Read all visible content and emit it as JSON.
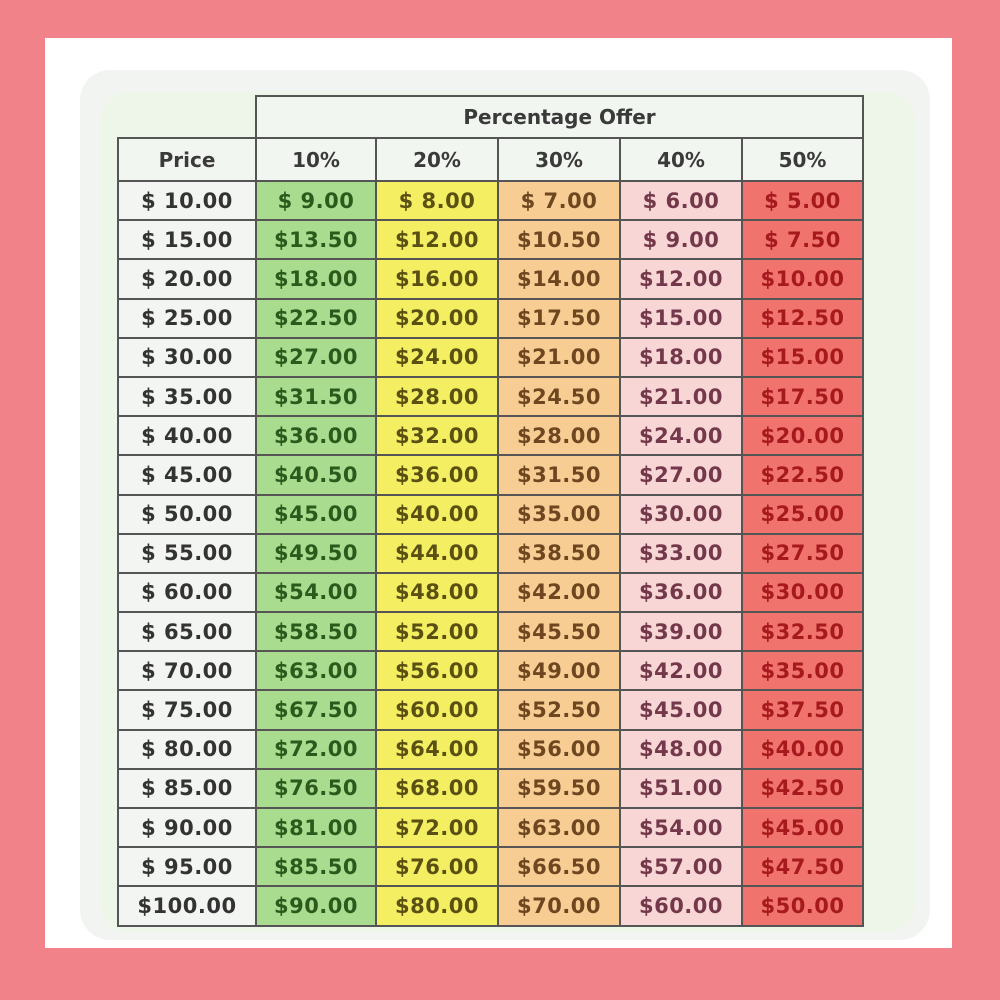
{
  "table": {
    "group_header": "Percentage Offer",
    "price_header": "Price",
    "columns": [
      "10%",
      "20%",
      "30%",
      "40%",
      "50%"
    ],
    "colors": {
      "10%": "#a9dc8e",
      "20%": "#f4ee62",
      "30%": "#f7cd94",
      "40%": "#f9d6d6",
      "50%": "#f0736e"
    },
    "rows": [
      [
        "$ 10.00",
        "$ 9.00",
        "$ 8.00",
        "$ 7.00",
        "$ 6.00",
        "$ 5.00"
      ],
      [
        "$ 15.00",
        "$13.50",
        "$12.00",
        "$10.50",
        "$ 9.00",
        "$ 7.50"
      ],
      [
        "$ 20.00",
        "$18.00",
        "$16.00",
        "$14.00",
        "$12.00",
        "$10.00"
      ],
      [
        "$ 25.00",
        "$22.50",
        "$20.00",
        "$17.50",
        "$15.00",
        "$12.50"
      ],
      [
        "$ 30.00",
        "$27.00",
        "$24.00",
        "$21.00",
        "$18.00",
        "$15.00"
      ],
      [
        "$ 35.00",
        "$31.50",
        "$28.00",
        "$24.50",
        "$21.00",
        "$17.50"
      ],
      [
        "$ 40.00",
        "$36.00",
        "$32.00",
        "$28.00",
        "$24.00",
        "$20.00"
      ],
      [
        "$ 45.00",
        "$40.50",
        "$36.00",
        "$31.50",
        "$27.00",
        "$22.50"
      ],
      [
        "$ 50.00",
        "$45.00",
        "$40.00",
        "$35.00",
        "$30.00",
        "$25.00"
      ],
      [
        "$ 55.00",
        "$49.50",
        "$44.00",
        "$38.50",
        "$33.00",
        "$27.50"
      ],
      [
        "$ 60.00",
        "$54.00",
        "$48.00",
        "$42.00",
        "$36.00",
        "$30.00"
      ],
      [
        "$ 65.00",
        "$58.50",
        "$52.00",
        "$45.50",
        "$39.00",
        "$32.50"
      ],
      [
        "$ 70.00",
        "$63.00",
        "$56.00",
        "$49.00",
        "$42.00",
        "$35.00"
      ],
      [
        "$ 75.00",
        "$67.50",
        "$60.00",
        "$52.50",
        "$45.00",
        "$37.50"
      ],
      [
        "$ 80.00",
        "$72.00",
        "$64.00",
        "$56.00",
        "$48.00",
        "$40.00"
      ],
      [
        "$ 85.00",
        "$76.50",
        "$68.00",
        "$59.50",
        "$51.00",
        "$42.50"
      ],
      [
        "$ 90.00",
        "$81.00",
        "$72.00",
        "$63.00",
        "$54.00",
        "$45.00"
      ],
      [
        "$ 95.00",
        "$85.50",
        "$76.00",
        "$66.50",
        "$57.00",
        "$47.50"
      ],
      [
        "$100.00",
        "$90.00",
        "$80.00",
        "$70.00",
        "$60.00",
        "$50.00"
      ]
    ]
  }
}
